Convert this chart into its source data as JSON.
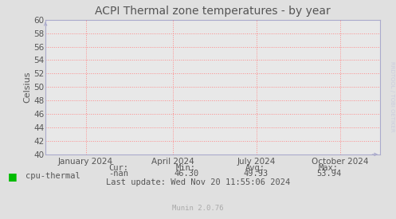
{
  "title": "ACPI Thermal zone temperatures - by year",
  "ylabel": "Celsius",
  "background_color": "#e0e0e0",
  "plot_bg_color": "#e8e8e8",
  "grid_color": "#ff8888",
  "ylim": [
    40,
    60
  ],
  "yticks": [
    40,
    42,
    44,
    46,
    48,
    50,
    52,
    54,
    56,
    58,
    60
  ],
  "xtick_labels": [
    "January 2024",
    "April 2024",
    "July 2024",
    "October 2024"
  ],
  "xtick_positions": [
    0.12,
    0.38,
    0.63,
    0.88
  ],
  "legend_label": "cpu-thermal",
  "legend_color": "#00bb00",
  "cur_label": "Cur:",
  "cur_value": "-nan",
  "min_label": "Min:",
  "min_value": "46.30",
  "avg_label": "Avg:",
  "avg_value": "49.93",
  "max_label": "Max:",
  "max_value": "53.94",
  "last_update": "Last update: Wed Nov 20 11:55:06 2024",
  "watermark": "Munin 2.0.76",
  "rrdtool_text": "RRDTOOL / TOBI OETIKER",
  "title_fontsize": 10,
  "axis_label_fontsize": 8,
  "tick_fontsize": 7.5,
  "footer_fontsize": 7.5,
  "watermark_fontsize": 6.5,
  "spine_color": "#aaaacc",
  "arrow_color": "#aaaacc",
  "text_color": "#555555",
  "rrdtool_color": "#ccccdd"
}
